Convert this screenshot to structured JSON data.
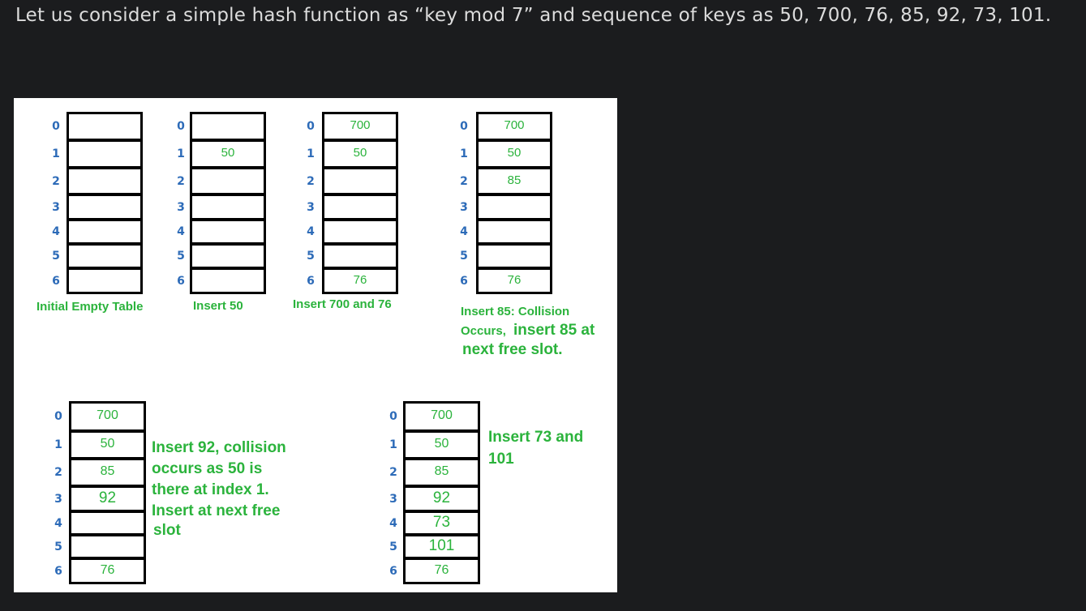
{
  "intro_text": "Let us consider a simple hash function as “key mod 7” and sequence of keys as 50, 700, 76, 85, 92, 73, 101.",
  "index_labels": [
    "0",
    "1",
    "2",
    "3",
    "4",
    "5",
    "6"
  ],
  "colors": {
    "background": "#1b1c1e",
    "text": "#dcdcdc",
    "key": "#2bb33c",
    "index": "#2d6bb8",
    "border": "#000000"
  },
  "tables": [
    {
      "cells": [
        "",
        "",
        "",
        "",
        "",
        "",
        ""
      ]
    },
    {
      "cells": [
        "",
        "50",
        "",
        "",
        "",
        "",
        ""
      ]
    },
    {
      "cells": [
        "700",
        "50",
        "",
        "",
        "",
        "",
        "76"
      ]
    },
    {
      "cells": [
        "700",
        "50",
        "85",
        "",
        "",
        "",
        "76"
      ]
    },
    {
      "cells": [
        "700",
        "50",
        "85",
        "92",
        "",
        "",
        "76"
      ]
    },
    {
      "cells": [
        "700",
        "50",
        "85",
        "92",
        "73",
        "101",
        "76"
      ]
    }
  ],
  "captions": {
    "c0": "Initial Empty Table",
    "c1": "Insert 50",
    "c2": "Insert 700 and 76",
    "c3a": "Insert 85: Collision",
    "c3b": "Occurs,",
    "c3c": "insert 85 at",
    "c3d": "next free slot.",
    "c4a": "Insert 92, collision",
    "c4b": "occurs as 50 is",
    "c4c": "there at index 1.",
    "c4d": "Insert at next free",
    "c4e": "slot",
    "c5a": "Insert 73 and",
    "c5b": "101"
  }
}
